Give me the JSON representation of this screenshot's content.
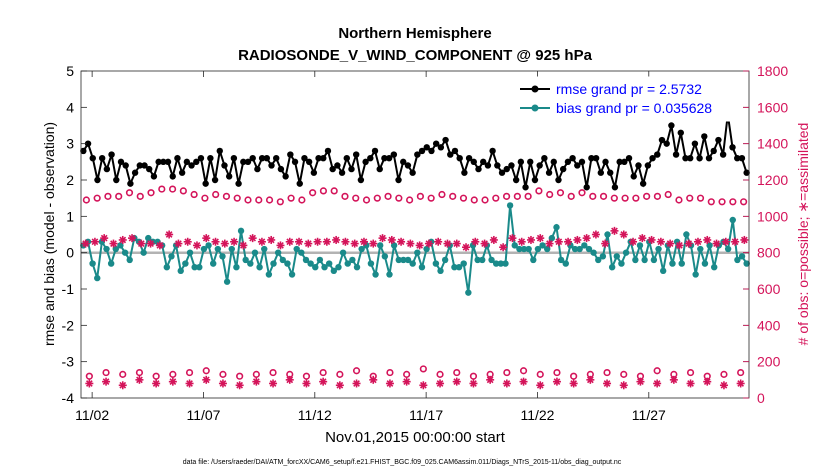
{
  "chart_data": {
    "type": "line",
    "title": "Northern Hemisphere",
    "subtitle": "RADIOSONDE_V_WIND_COMPONENT @ 925 hPa",
    "xlabel": "Nov.01,2015 00:00:00 start",
    "ylabel_left": "rmse and bias (model - observation)",
    "ylabel_right": "# of obs: o=possible; ∗=assimilated",
    "footer": "data file: /Users/raeder/DAI/ATM_forcXX/CAM6_setup/f.e21.FHIST_BGC.f09_025.CAM6assim.011/Diags_NTrS_2015-11/obs_diag_output.nc",
    "xlim": [
      1.5,
      31.5
    ],
    "ylim_left": [
      -4,
      5
    ],
    "ylim_right": [
      0,
      1800
    ],
    "x_ticks": [
      2,
      7,
      12,
      17,
      22,
      27
    ],
    "x_tick_labels": [
      "11/02",
      "11/07",
      "11/12",
      "11/17",
      "11/22",
      "11/27"
    ],
    "y_ticks_left": [
      -4,
      -3,
      -2,
      -1,
      0,
      1,
      2,
      3,
      4,
      5
    ],
    "y_tick_labels_left": [
      "-4",
      "-3",
      "-2",
      "-1",
      "0",
      "1",
      "2",
      "3",
      "4",
      "5"
    ],
    "y_ticks_right": [
      0,
      200,
      400,
      600,
      800,
      1000,
      1200,
      1400,
      1600,
      1800
    ],
    "y_tick_labels_right": [
      "0",
      "200",
      "400",
      "600",
      "800",
      "1000",
      "1200",
      "1400",
      "1600",
      "1800"
    ],
    "legend": {
      "position": "top-right",
      "entries": [
        {
          "label": "rmse grand pr = 2.5732",
          "color": "#000000"
        },
        {
          "label": "bias grand pr = 0.035628",
          "color": "#1a8a8a"
        }
      ]
    },
    "colors": {
      "rmse": "#000000",
      "bias": "#1a8a8a",
      "obs": "#d4145a",
      "zero_line": "#b3b3b3",
      "legend_text": "#0000ff"
    },
    "x_start": 1.5,
    "x_step": 0.25,
    "series": [
      {
        "name": "rmse",
        "axis": "left",
        "values": [
          2.8,
          3.0,
          2.6,
          2.0,
          2.6,
          2.3,
          2.7,
          2.0,
          2.5,
          2.4,
          1.9,
          2.2,
          2.4,
          2.4,
          2.3,
          2.1,
          2.5,
          2.5,
          2.5,
          2.1,
          2.6,
          2.2,
          2.5,
          2.4,
          2.5,
          2.6,
          1.9,
          2.6,
          2.0,
          2.8,
          2.4,
          2.1,
          2.6,
          1.9,
          2.5,
          2.5,
          2.6,
          2.3,
          2.6,
          2.6,
          2.4,
          2.6,
          2.3,
          2.1,
          2.7,
          2.5,
          1.9,
          2.6,
          2.5,
          2.2,
          2.6,
          2.6,
          2.8,
          2.3,
          2.4,
          2.2,
          2.6,
          2.3,
          2.7,
          2.0,
          2.5,
          2.6,
          2.8,
          2.3,
          2.6,
          2.6,
          2.7,
          2.0,
          2.5,
          2.4,
          2.2,
          2.7,
          2.8,
          2.9,
          2.8,
          3.0,
          2.9,
          3.1,
          2.7,
          2.8,
          2.6,
          2.2,
          2.6,
          2.5,
          2.3,
          2.5,
          2.4,
          2.8,
          2.4,
          2.2,
          2.3,
          2.4,
          2.0,
          2.5,
          1.8,
          2.5,
          2.0,
          2.4,
          2.6,
          2.2,
          2.5,
          2.0,
          2.3,
          2.5,
          2.6,
          2.4,
          2.5,
          1.8,
          2.6,
          2.6,
          2.2,
          2.5,
          2.2,
          1.8,
          2.5,
          2.5,
          2.6,
          2.1,
          2.4,
          1.9,
          2.4,
          2.6,
          2.7,
          3.1,
          3.0,
          3.5,
          2.7,
          3.3,
          2.6,
          2.6,
          3.0,
          2.6,
          3.2,
          2.6,
          2.8,
          3.1,
          2.7,
          3.8,
          2.9,
          2.6,
          2.6,
          2.2
        ]
      },
      {
        "name": "bias",
        "axis": "left",
        "values": [
          0.2,
          0.3,
          -0.3,
          -0.7,
          0.3,
          0.1,
          -0.3,
          0.1,
          0.2,
          0.0,
          -0.2,
          0.4,
          0.3,
          0.0,
          0.4,
          0.3,
          0.3,
          0.2,
          -0.4,
          -0.1,
          0.2,
          -0.5,
          -0.3,
          0.0,
          -0.4,
          -0.4,
          0.1,
          0.2,
          -0.3,
          0.1,
          -0.1,
          -0.8,
          0.1,
          -0.4,
          0.6,
          -0.2,
          -0.3,
          0.0,
          -0.4,
          0.1,
          -0.6,
          -0.3,
          0.0,
          -0.2,
          -0.3,
          -0.6,
          0.1,
          0.0,
          -0.2,
          -0.3,
          -0.4,
          -0.2,
          -0.4,
          -0.3,
          -0.5,
          -0.4,
          0.0,
          -0.3,
          -0.2,
          -0.4,
          0.1,
          0.2,
          -0.3,
          -0.6,
          0.2,
          -0.1,
          -0.6,
          0.2,
          -0.2,
          -0.2,
          -0.2,
          -0.3,
          0.0,
          -0.4,
          0.1,
          0.3,
          -0.3,
          -0.5,
          -0.2,
          0.2,
          -0.4,
          -0.4,
          -0.3,
          -1.1,
          0.2,
          -0.2,
          -0.2,
          0.2,
          -0.2,
          -0.3,
          -0.3,
          -0.3,
          1.3,
          0.2,
          0.1,
          0.1,
          0.1,
          -0.2,
          0.1,
          0.2,
          0.1,
          0.4,
          0.7,
          -0.2,
          -0.3,
          0.2,
          0.1,
          0.1,
          0.2,
          0.1,
          0.0,
          -0.2,
          -0.1,
          0.5,
          -0.4,
          -0.1,
          -0.3,
          0.0,
          0.3,
          -0.2,
          0.2,
          -0.2,
          0.3,
          -0.2,
          0.1,
          -0.5,
          0.2,
          -0.3,
          0.3,
          -0.3,
          0.5,
          0.2,
          -0.6,
          0.1,
          -0.3,
          0.2,
          -0.4,
          0.2,
          0.3,
          0.1,
          0.9,
          -0.2,
          -0.1,
          -0.3
        ]
      },
      {
        "name": "obs possible (upper)",
        "axis": "right",
        "marker": "circle",
        "values": [
          1090,
          1100,
          1110,
          1110,
          1130,
          1110,
          1130,
          1150,
          1150,
          1140,
          1120,
          1100,
          1120,
          1110,
          1100,
          1090,
          1090,
          1090,
          1080,
          1100,
          1090,
          1130,
          1140,
          1140,
          1110,
          1100,
          1090,
          1100,
          1110,
          1100,
          1090,
          1110,
          1100,
          1120,
          1110,
          1100,
          1090,
          1090,
          1100,
          1110,
          1110,
          1110,
          1140,
          1120,
          1130,
          1110,
          1130,
          1110,
          1110,
          1100,
          1100,
          1100,
          1110,
          1110,
          1120,
          1090,
          1100,
          1100,
          1080,
          1080,
          1080,
          1080
        ]
      },
      {
        "name": "obs assimilated (upper)",
        "axis": "right",
        "marker": "asterisk",
        "values": [
          850,
          860,
          880,
          850,
          870,
          880,
          850,
          850,
          840,
          900,
          850,
          860,
          840,
          880,
          860,
          850,
          860,
          840,
          880,
          860,
          870,
          840,
          860,
          860,
          850,
          860,
          860,
          870,
          860,
          850,
          860,
          850,
          880,
          870,
          860,
          850,
          840,
          850,
          860,
          850,
          850,
          830,
          860,
          850,
          870,
          830,
          880,
          860,
          870,
          880,
          850,
          860,
          860,
          870,
          880,
          900,
          850,
          920,
          900,
          860,
          880,
          870,
          860,
          850,
          840,
          850,
          860,
          870,
          850,
          860,
          860,
          870
        ]
      },
      {
        "name": "obs possible (lower)",
        "axis": "right",
        "marker": "circle",
        "values": [
          120,
          140,
          130,
          140,
          120,
          130,
          140,
          150,
          130,
          120,
          130,
          140,
          130,
          120,
          140,
          130,
          150,
          120,
          140,
          130,
          160,
          130,
          140,
          120,
          130,
          140,
          150,
          130,
          140,
          120,
          130,
          140,
          130,
          120,
          150,
          130,
          140,
          120,
          130,
          140
        ]
      },
      {
        "name": "obs assimilated (lower)",
        "axis": "right",
        "marker": "asterisk",
        "values": [
          80,
          90,
          70,
          100,
          80,
          90,
          80,
          100,
          80,
          70,
          90,
          80,
          100,
          80,
          90,
          70,
          80,
          100,
          80,
          90,
          70,
          80,
          90,
          80,
          100,
          80,
          90,
          70,
          90,
          80,
          100,
          80,
          70,
          90,
          80,
          100,
          80,
          90,
          70,
          80
        ]
      }
    ]
  }
}
